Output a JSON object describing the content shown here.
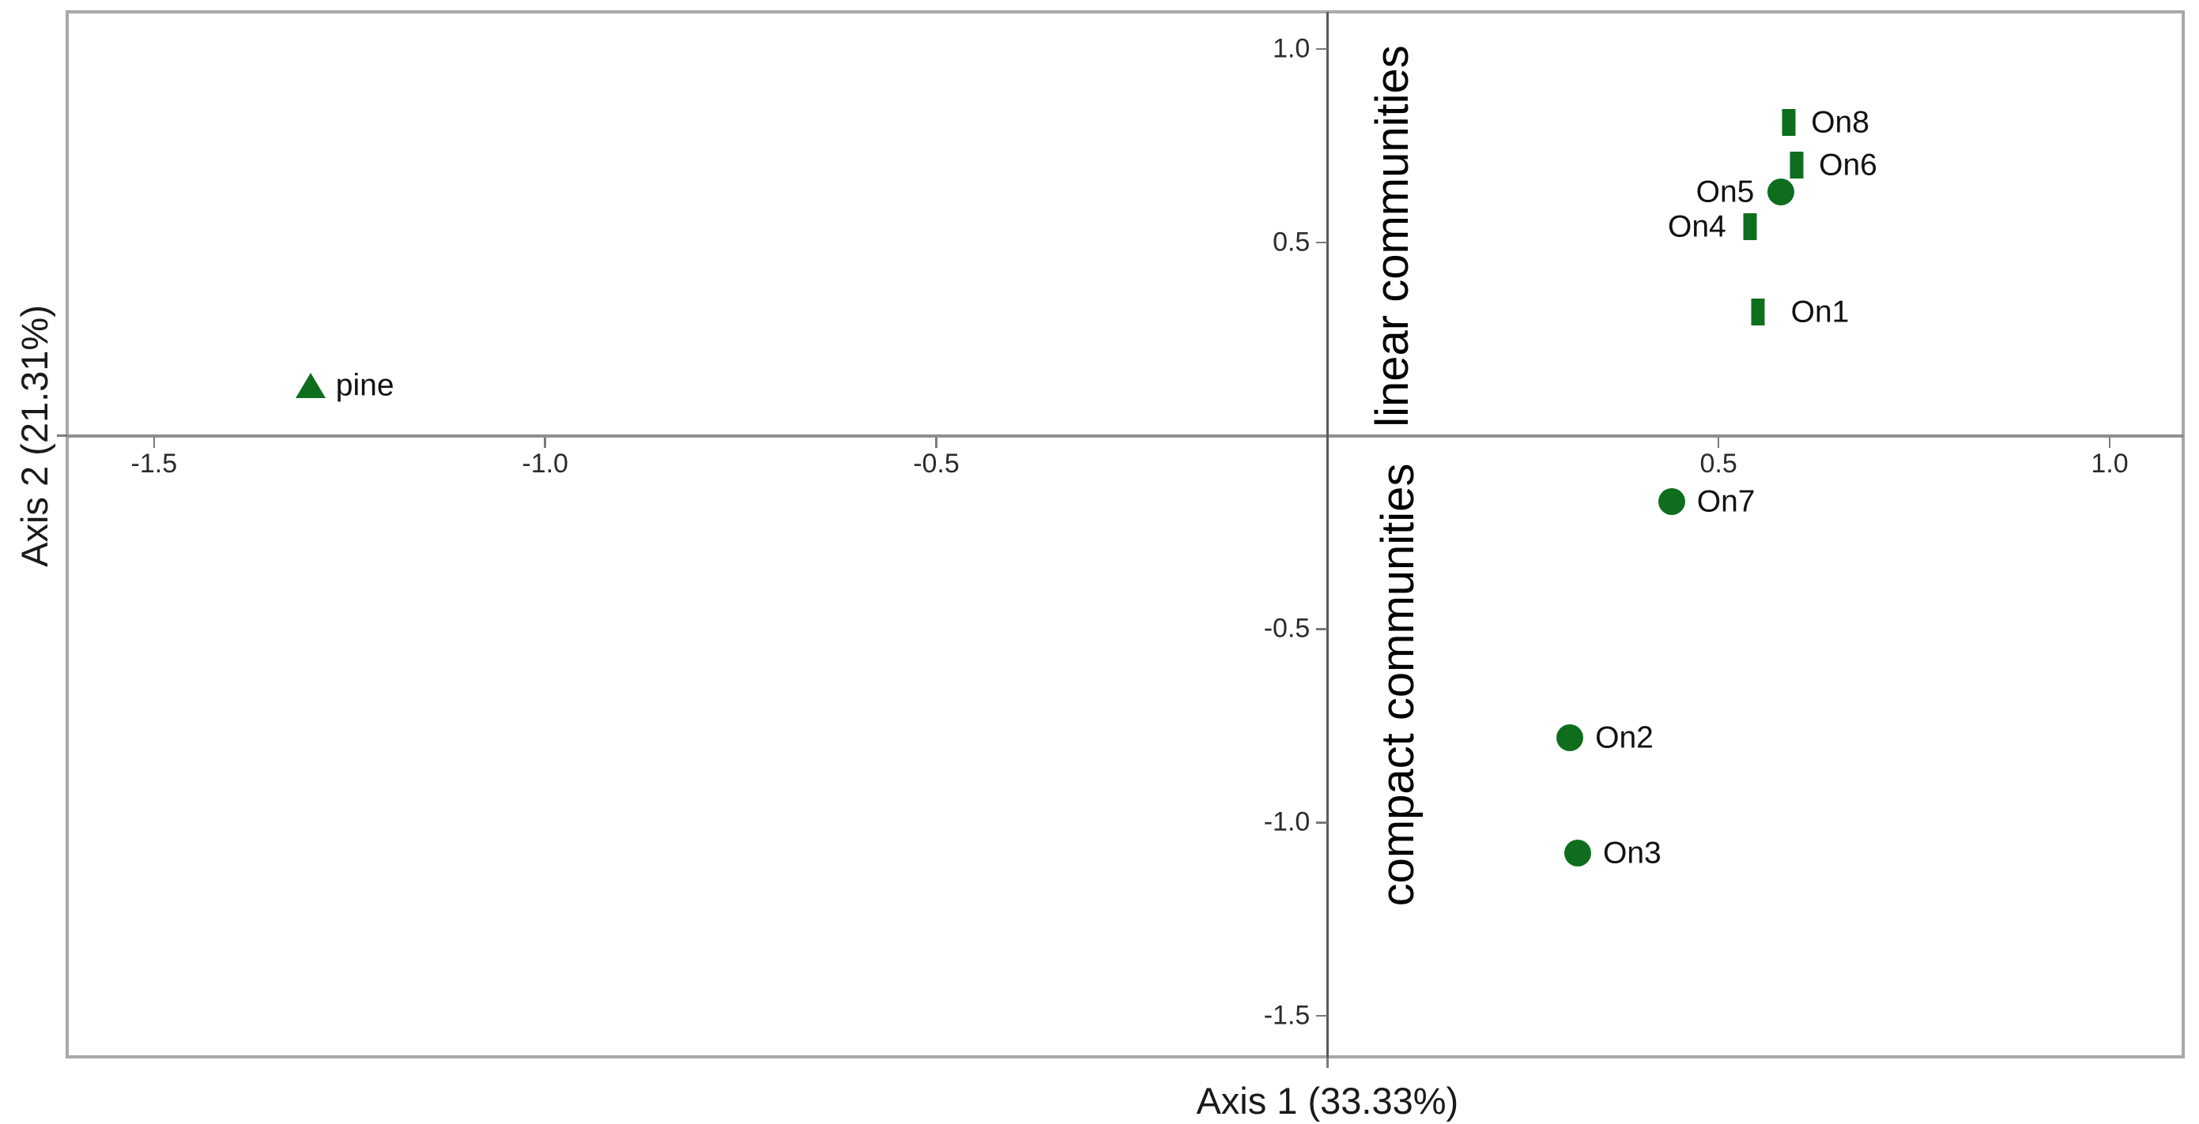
{
  "page": {
    "background": "#ffffff"
  },
  "colors": {
    "marker_green": "#0e6e1e",
    "axis_line": "#5a5a5a",
    "zero_baseline": "#8f8f8f",
    "frame": "#a9a9a9",
    "tick": "#7a7a7a",
    "text": "#1a1a1a",
    "tick_text": "#2b2b2b"
  },
  "chart_data": {
    "type": "scatter",
    "title": "",
    "xlabel": "Axis 1 (33.33%)",
    "ylabel": "Axis 2 (21.31%)",
    "xlim": [
      -1.611,
      1.095
    ],
    "ylim": [
      -1.608,
      1.096
    ],
    "grid": false,
    "legend": "none",
    "x_ticks": [
      {
        "v": -1.5,
        "label": "-1.5"
      },
      {
        "v": -1.0,
        "label": "-1.0"
      },
      {
        "v": -0.5,
        "label": "-0.5"
      },
      {
        "v": 0.5,
        "label": "0.5"
      },
      {
        "v": 1.0,
        "label": "1.0"
      }
    ],
    "y_ticks": [
      {
        "v": 1.0,
        "label": "1.0"
      },
      {
        "v": 0.5,
        "label": "0.5"
      },
      {
        "v": -0.5,
        "label": "-0.5"
      },
      {
        "v": -1.0,
        "label": "-1.0"
      },
      {
        "v": -1.5,
        "label": "-1.5"
      }
    ],
    "points": [
      {
        "id": "pine",
        "label": "pine",
        "marker": "triangle",
        "x": -1.3,
        "y": 0.13,
        "label_side": "right",
        "label_gap": 32
      },
      {
        "id": "On8",
        "label": "On8",
        "marker": "bar",
        "x": 0.59,
        "y": 0.81,
        "label_side": "right",
        "label_gap": 28
      },
      {
        "id": "On6",
        "label": "On6",
        "marker": "bar",
        "x": 0.6,
        "y": 0.7,
        "label_side": "right",
        "label_gap": 28
      },
      {
        "id": "On5",
        "label": "On5",
        "marker": "circle",
        "x": 0.58,
        "y": 0.63,
        "label_side": "left",
        "label_gap": 34
      },
      {
        "id": "On4",
        "label": "On4",
        "marker": "bar",
        "x": 0.54,
        "y": 0.54,
        "label_side": "left",
        "label_gap": 30
      },
      {
        "id": "On1",
        "label": "On1",
        "marker": "bar",
        "x": 0.55,
        "y": 0.32,
        "label_side": "right",
        "label_gap": 42
      },
      {
        "id": "On7",
        "label": "On7",
        "marker": "circle",
        "x": 0.44,
        "y": -0.17,
        "label_side": "right",
        "label_gap": 32
      },
      {
        "id": "On2",
        "label": "On2",
        "marker": "circle",
        "x": 0.31,
        "y": -0.78,
        "label_side": "right",
        "label_gap": 32
      },
      {
        "id": "On3",
        "label": "On3",
        "marker": "circle",
        "x": 0.32,
        "y": -1.08,
        "label_side": "right",
        "label_gap": 32
      }
    ],
    "annotations": [
      {
        "id": "linear-communities",
        "text": "linear communities",
        "x": 0.084,
        "y": 0.515,
        "rotation": -90
      },
      {
        "id": "compact-communities",
        "text": "compact communities",
        "x": 0.091,
        "y": -0.645,
        "rotation": -90
      }
    ]
  }
}
